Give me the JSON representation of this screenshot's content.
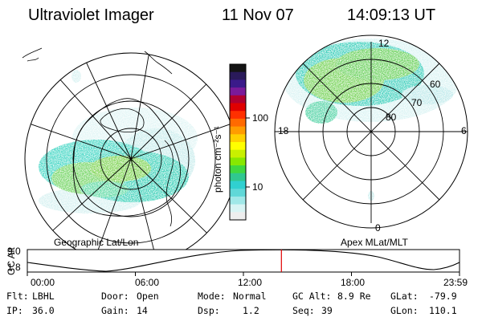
{
  "header": {
    "instrument": "Ultraviolet Imager",
    "date": "11 Nov 07",
    "time": "14:09:13 UT"
  },
  "left_panel": {
    "label": "Geographic Lat/Lon"
  },
  "right_panel": {
    "label": "Apex MLat/MLT",
    "mlt_labels": {
      "top": "12",
      "left": "18",
      "right": "6",
      "bottom": "0"
    },
    "lat_labels": [
      "60",
      "70",
      "80"
    ]
  },
  "colorbar": {
    "unit_label": "photon cm⁻²s⁻¹",
    "ticks": [
      "100",
      "10"
    ],
    "colors": [
      "#141414",
      "#2a1a5a",
      "#3a1a8a",
      "#7a1a9a",
      "#b00030",
      "#e00000",
      "#ff3000",
      "#ff6a00",
      "#ff9c00",
      "#ffd000",
      "#ffff00",
      "#c8f000",
      "#88e800",
      "#40d840",
      "#30c890",
      "#30d0d0",
      "#60d8d8",
      "#a0e8e8",
      "#d8f4f4",
      "#eeeeee"
    ]
  },
  "orbit_plot": {
    "ylabel": "GC Alt",
    "yticks": [
      "9.0",
      "1.8"
    ],
    "xticks": [
      "00:00",
      "06:00",
      "12:00",
      "18:00",
      "23:59"
    ],
    "current_time_fraction": 0.588
  },
  "footer": {
    "filter_label": "Flt:",
    "filter_value": "LBHL",
    "ip_label": "IP:",
    "ip_value": "36.0",
    "door_label": "Door:",
    "door_value": "Open",
    "gain_label": "Gain:",
    "gain_value": "14",
    "mode_label": "Mode:",
    "mode_value": "Normal",
    "dsp_label": "Dsp:",
    "dsp_value": "1.2",
    "gcalt_label": "GC Alt:",
    "gcalt_value": "8.9 Re",
    "seq_label": "Seq:",
    "seq_value": "39",
    "glat_label": "GLat:",
    "glat_value": "-79.9",
    "glon_label": "GLon:",
    "glon_value": "110.1"
  }
}
